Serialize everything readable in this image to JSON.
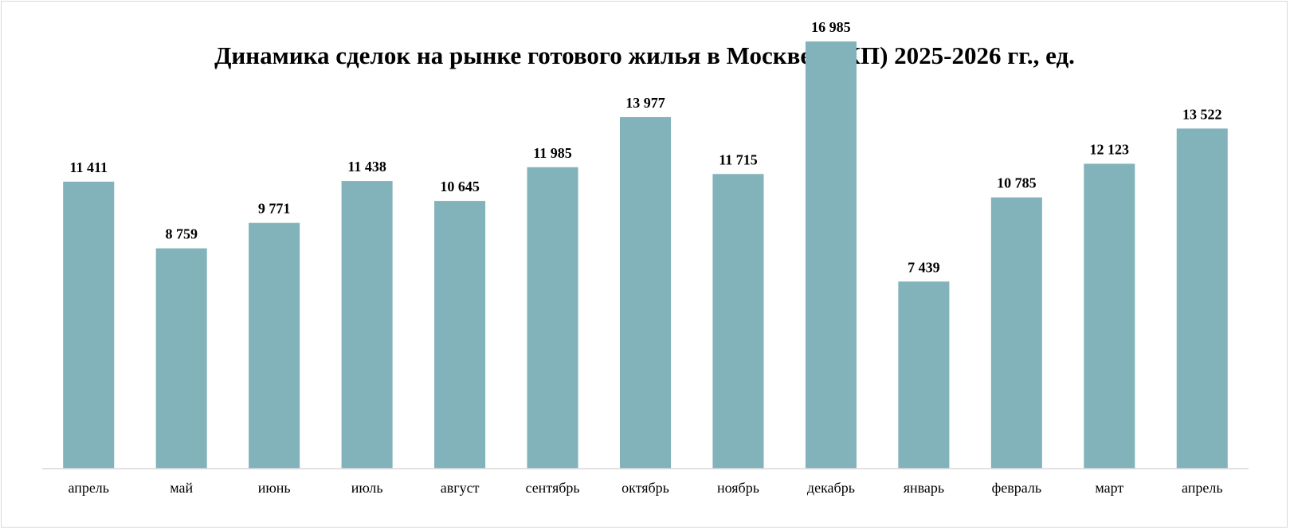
{
  "chart_data": {
    "type": "bar",
    "title": "Динамика сделок на рынке готового жилья в Москве (ДКП) 2025-2026 гг., ед.",
    "categories": [
      "апрель",
      "май",
      "июнь",
      "июль",
      "август",
      "сентябрь",
      "октябрь",
      "ноябрь",
      "декабрь",
      "январь",
      "февраль",
      "март",
      "апрель"
    ],
    "values": [
      11411,
      8759,
      9771,
      11438,
      10645,
      11985,
      13977,
      11715,
      16985,
      7439,
      10785,
      12123,
      13522
    ],
    "data_labels": [
      "11 411",
      "8 759",
      "9 771",
      "11 438",
      "10 645",
      "11 985",
      "13 977",
      "11 715",
      "16 985",
      "7 439",
      "10 785",
      "12 123",
      "13 522"
    ],
    "ylim": [
      0,
      18000
    ],
    "grid": false,
    "legend": "none",
    "colors": {
      "bar": "#82b3ba",
      "axis": "#d9d9d9",
      "text": "#000000"
    }
  }
}
